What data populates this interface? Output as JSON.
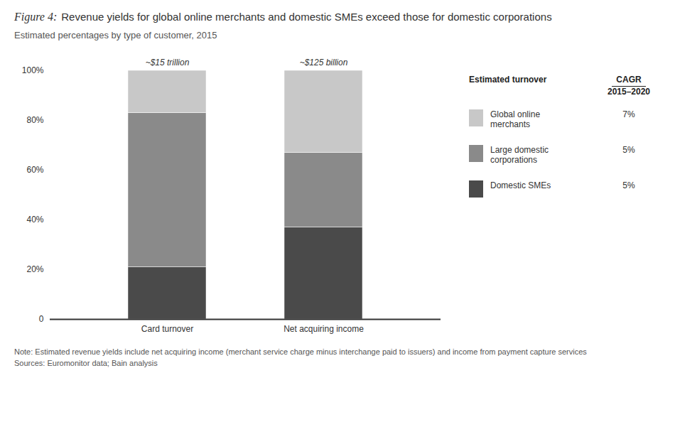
{
  "chart_data": {
    "type": "bar",
    "stacked": true,
    "figure_label": "Figure 4:",
    "title": "Revenue yields for global online merchants and domestic SMEs exceed those for domestic corporations",
    "subtitle": "Estimated percentages by type of customer, 2015",
    "categories": [
      "Card turnover",
      "Net acquiring income"
    ],
    "series": [
      {
        "name": "Domestic SMEs",
        "color": "#4a4a4a",
        "values": [
          21,
          37
        ],
        "cagr": 5,
        "cagr_label": "5%"
      },
      {
        "name": "Large domestic corporations",
        "color": "#8a8a8a",
        "values": [
          62,
          30
        ],
        "cagr": 5,
        "cagr_label": "5%"
      },
      {
        "name": "Global online merchants",
        "color": "#c8c8c8",
        "values": [
          17,
          33
        ],
        "cagr": 7,
        "cagr_label": "7%"
      }
    ],
    "annotations": [
      {
        "category": "Card turnover",
        "text": "~$15 trillion"
      },
      {
        "category": "Net acquiring income",
        "text": "~$125 billion"
      }
    ],
    "legend_title": "Estimated turnover",
    "legend_value_title": [
      "CAGR",
      "2015–2020"
    ],
    "note": "Note: Estimated revenue yields include net acquiring income (merchant service charge minus interchange paid to issuers) and income from payment capture services",
    "source": "Sources: Euromonitor data; Bain analysis",
    "ylim": [
      0,
      100
    ],
    "yticks": [
      0,
      {
        "value": 20,
        "label": "20%"
      },
      {
        "value": 40,
        "label": "40%"
      },
      {
        "value": 60,
        "label": "60%"
      },
      {
        "value": 80,
        "label": "80%"
      },
      {
        "value": 100,
        "label": "100%"
      }
    ],
    "grid": false,
    "legend": "right"
  }
}
